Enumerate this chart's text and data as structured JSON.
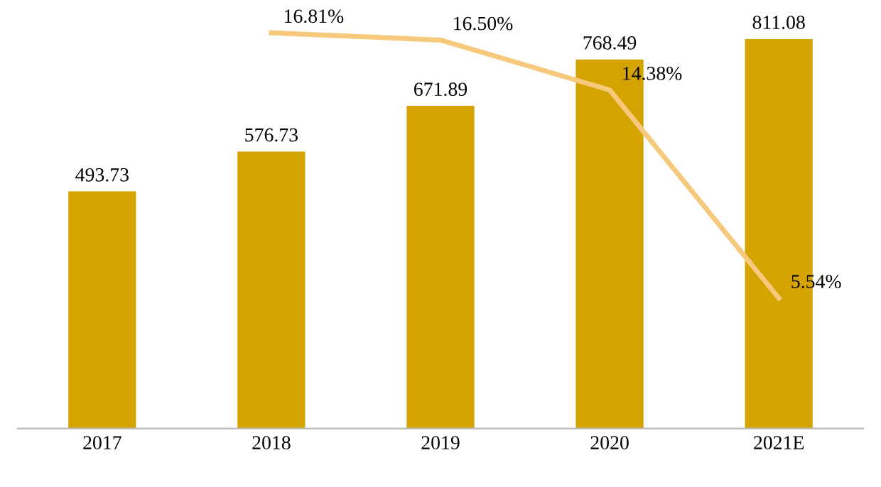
{
  "chart_data": {
    "type": "bar",
    "categories": [
      "2017",
      "2018",
      "2019",
      "2020",
      "2021E"
    ],
    "series": [
      {
        "color": "#d4a300",
        "values": [
          493.73,
          576.73,
          671.89,
          768.49,
          811.08
        ],
        "data_labels": true
      },
      {
        "type": "line",
        "axis": "y2",
        "color": "#f6c97c",
        "values": [
          null,
          16.81,
          16.5,
          14.38,
          5.54
        ],
        "value_labels": [
          null,
          "16.81%",
          "16.50%",
          "14.38%",
          "5.54%"
        ],
        "marker": "none",
        "line_style": "solid"
      }
    ],
    "tick_labels": "x",
    "grid": false,
    "legend": false
  }
}
